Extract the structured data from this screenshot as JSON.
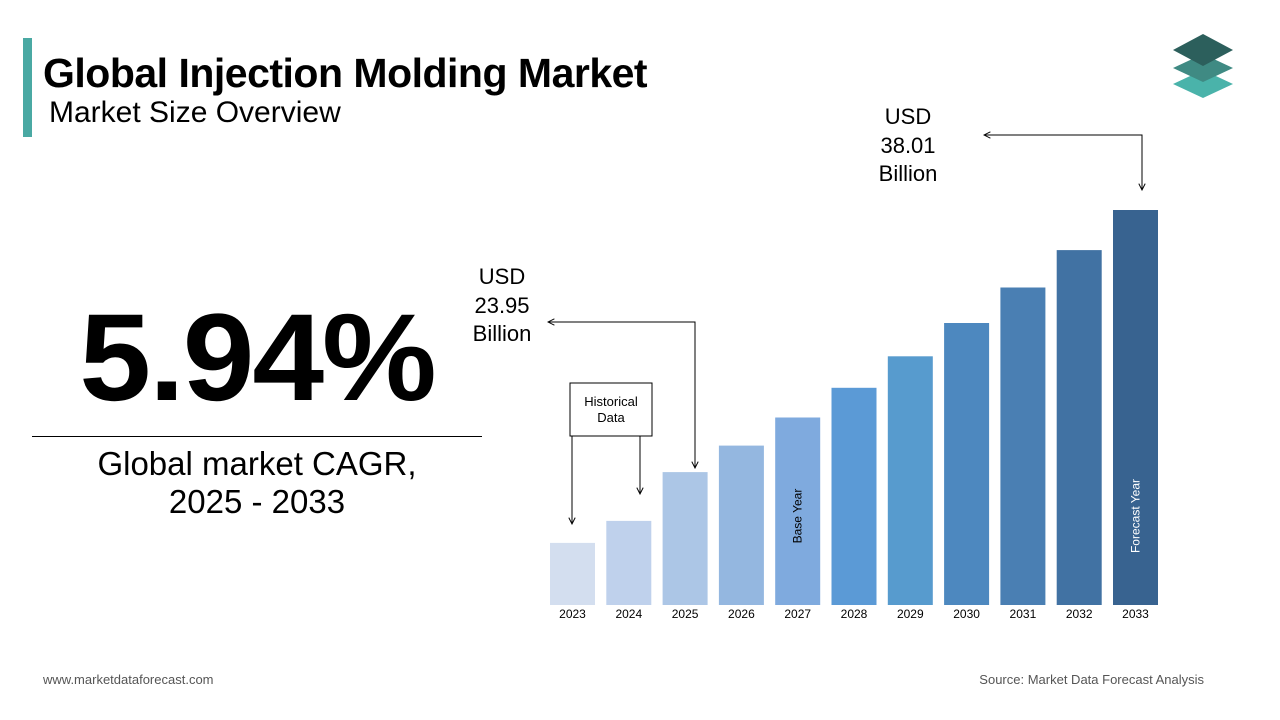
{
  "header": {
    "title": "Global Injection Molding Market",
    "subtitle": "Market Size Overview"
  },
  "highlight": {
    "cagr": "5.94%",
    "label_line1": "Global market CAGR,",
    "label_line2": "2025 - 2033"
  },
  "logo": {
    "icon": "stacked-layers-logo-icon",
    "colors": [
      "#2c5f5c",
      "#3f8a83",
      "#4ab3aa"
    ]
  },
  "chart_data": {
    "type": "bar",
    "categories": [
      "2023",
      "2024",
      "2025",
      "2026",
      "2027",
      "2028",
      "2029",
      "2030",
      "2031",
      "2032",
      "2033"
    ],
    "values": [
      20.15,
      21.33,
      23.95,
      25.37,
      26.88,
      28.47,
      30.16,
      31.95,
      33.85,
      35.86,
      38.01
    ],
    "unit": "USD Billion",
    "colors": [
      "#d3deef",
      "#bfd1ec",
      "#acc6e6",
      "#94b7e0",
      "#7faade",
      "#5b9ad6",
      "#579bce",
      "#4d88bf",
      "#4a7fb3",
      "#4172a3",
      "#386390"
    ],
    "callouts": [
      {
        "line1": "USD",
        "line2": "23.95",
        "line3": "Billion",
        "category": "2025"
      },
      {
        "line1": "USD",
        "line2": "38.01",
        "line3": "Billion",
        "category": "2033"
      }
    ],
    "historical_box": {
      "line1": "Historical",
      "line2": "Data"
    },
    "bar_labels": [
      {
        "category": "2027",
        "text": "Base Year"
      },
      {
        "category": "2033",
        "text": "Forecast Year"
      }
    ]
  },
  "footer": {
    "website": "www.marketdataforecast.com",
    "source": "Source: Market Data Forecast Analysis"
  }
}
